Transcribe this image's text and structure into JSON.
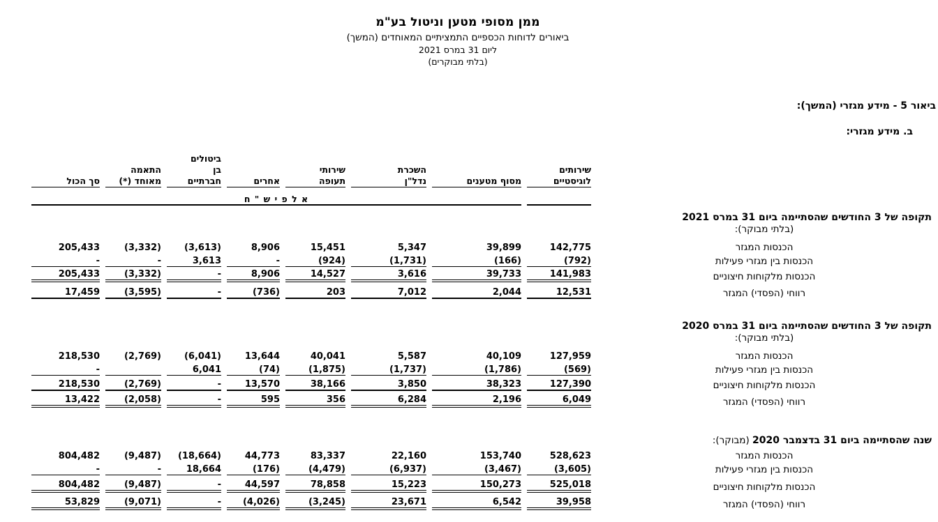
{
  "document": {
    "company": "ממן מסופי מטען וניטול בע\"מ",
    "subtitle": "ביאורים לדוחות הכספיים התמציתיים המאוחדים (המשך)",
    "date_line": "ליום 31 במרס 2021",
    "audit_line": "(בלתי מבוקרים)"
  },
  "note": {
    "title": "ביאור 5 - מידע מגזרי (המשך):",
    "subtitle": "ב.  מידע מגזרי:"
  },
  "table": {
    "units_label": "א ל פ י   ש \" ח",
    "columns": [
      {
        "id": "logistics",
        "lines": [
          "שירותים",
          "לוגיסטיים"
        ]
      },
      {
        "id": "cargo-terminal",
        "lines": [
          "מסוף מטענים"
        ]
      },
      {
        "id": "real-estate",
        "lines": [
          "השכרת",
          "נדל\"ן"
        ]
      },
      {
        "id": "aviation",
        "lines": [
          "שירותי",
          "תעופה"
        ]
      },
      {
        "id": "others",
        "lines": [
          "אחרים"
        ]
      },
      {
        "id": "eliminations",
        "lines": [
          "ביטולים",
          "בן",
          "חברתיים"
        ]
      },
      {
        "id": "adjustment",
        "lines": [
          "התאמה",
          "מאוחד (*)"
        ]
      },
      {
        "id": "total",
        "lines": [
          "סך הכול"
        ]
      }
    ],
    "sections": [
      {
        "title": "תקופה של 3 החודשים שהסתיימה ביום 31 במרס 2021",
        "audit_label": "(בלתי מבוקר):",
        "audit_inline": false,
        "rows": [
          {
            "label": "הכנסות המגזר",
            "values": [
              "142,775",
              "39,899",
              "5,347",
              "15,451",
              "8,906",
              "(3,613)",
              "(3,332)",
              "205,433"
            ]
          },
          {
            "label": "הכנסות בין מגזרי פעילות",
            "values": [
              "(792)",
              "(166)",
              "(1,731)",
              "(924)",
              "-",
              "3,613",
              "-",
              "-"
            ]
          },
          {
            "label": "הכנסות מלקוחות חיצוניים",
            "values": [
              "141,983",
              "39,733",
              "3,616",
              "14,527",
              "8,906",
              "-",
              "(3,332)",
              "205,433"
            ]
          },
          {
            "label": "רווחי (הפסדי) המגזר",
            "values": [
              "12,531",
              "2,044",
              "7,012",
              "203",
              "(736)",
              "-",
              "(3,595)",
              "17,459"
            ]
          }
        ]
      },
      {
        "title": "תקופה של 3 החודשים שהסתיימה ביום 31 במרס 2020",
        "audit_label": "(בלתי מבוקר):",
        "audit_inline": false,
        "rows": [
          {
            "label": "הכנסות המגזר",
            "values": [
              "127,959",
              "40,109",
              "5,587",
              "40,041",
              "13,644",
              "(6,041)",
              "(2,769)",
              "218,530"
            ]
          },
          {
            "label": "הכנסות בין מגזרי פעילות",
            "values": [
              "(569)",
              "(1,786)",
              "(1,737)",
              "(1,875)",
              "(74)",
              "6,041",
              "",
              "-"
            ]
          },
          {
            "label": "הכנסות מלקוחות חיצוניים",
            "values": [
              "127,390",
              "38,323",
              "3,850",
              "38,166",
              "13,570",
              "-",
              "(2,769)",
              "218,530"
            ]
          },
          {
            "label": "רווחי (הפסדי) המגזר",
            "values": [
              "6,049",
              "2,196",
              "6,284",
              "356",
              "595",
              "-",
              "(2,058)",
              "13,422"
            ]
          }
        ]
      },
      {
        "title": "שנה שהסתיימה ביום 31 בדצמבר  2020",
        "audit_label": "(מבוקר):",
        "audit_inline": true,
        "rows": [
          {
            "label": "הכנסות המגזר",
            "values": [
              "528,623",
              "153,740",
              "22,160",
              "83,337",
              "44,773",
              "(18,664)",
              "(9,487)",
              "804,482"
            ]
          },
          {
            "label": "הכנסות בין מגזרי פעילות",
            "values": [
              "(3,605)",
              "(3,467)",
              "(6,937)",
              "(4,479)",
              "(176)",
              "18,664",
              "-",
              "-"
            ]
          },
          {
            "label": "הכנסות מלקוחות חיצוניים",
            "values": [
              "525,018",
              "150,273",
              "15,223",
              "78,858",
              "44,597",
              "-",
              "(9,487)",
              "804,482"
            ]
          },
          {
            "label": "רווחי  (הפסדי) המגזר",
            "values": [
              "39,958",
              "6,542",
              "23,671",
              "(3,245)",
              "(4,026)",
              "-",
              "(9,071)",
              "53,829"
            ]
          }
        ]
      }
    ]
  },
  "colors": {
    "text": "#000000",
    "background": "#ffffff"
  }
}
